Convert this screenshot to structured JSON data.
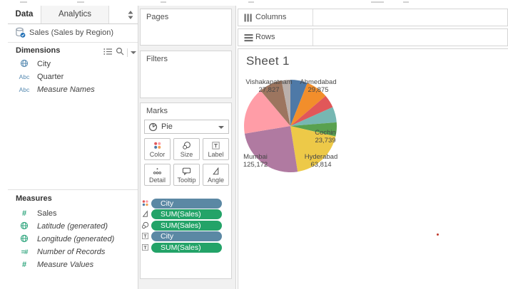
{
  "tabs": [
    {
      "label": "Data",
      "active": true
    },
    {
      "label": "Analytics",
      "active": false
    }
  ],
  "data_pane": {
    "datasource": "Sales (Sales by Region)",
    "dimensions": {
      "header": "Dimensions",
      "items": [
        {
          "label": "City",
          "icon": "globe",
          "italic": false
        },
        {
          "label": "Quarter",
          "icon": "abc",
          "italic": false
        },
        {
          "label": "Measure Names",
          "icon": "abc",
          "italic": true
        }
      ]
    },
    "measures": {
      "header": "Measures",
      "items": [
        {
          "label": "Sales",
          "icon": "hash",
          "italic": false
        },
        {
          "label": "Latitude (generated)",
          "icon": "globe",
          "italic": true
        },
        {
          "label": "Longitude (generated)",
          "icon": "globe",
          "italic": true
        },
        {
          "label": "Number of Records",
          "icon": "eq-hash",
          "italic": true
        },
        {
          "label": "Measure Values",
          "icon": "hash",
          "italic": true
        }
      ]
    }
  },
  "shelves": {
    "pages": "Pages",
    "filters": "Filters",
    "columns": "Columns",
    "rows": "Rows"
  },
  "marks": {
    "header": "Marks",
    "mark_type": "Pie",
    "buttons": [
      {
        "label": "Color",
        "icon": "color-dots"
      },
      {
        "label": "Size",
        "icon": "size-circles"
      },
      {
        "label": "Label",
        "icon": "text-t"
      },
      {
        "label": "Detail",
        "icon": "detail-dots"
      },
      {
        "label": "Tooltip",
        "icon": "tooltip-bubble"
      },
      {
        "label": "Angle",
        "icon": "angle-triangle"
      }
    ],
    "pills": [
      {
        "label": "City",
        "role": "dimension",
        "icon": "color-dots"
      },
      {
        "label": "SUM(Sales)",
        "role": "measure",
        "icon": "angle-triangle"
      },
      {
        "label": "SUM(Sales)",
        "role": "measure",
        "icon": "size-circles"
      },
      {
        "label": "City",
        "role": "dimension",
        "icon": "text-t"
      },
      {
        "label": "SUM(Sales)",
        "role": "measure",
        "icon": "text-t"
      }
    ]
  },
  "sheet": {
    "title": "Sheet 1"
  },
  "colors": {
    "pill_blue": "#5b88a4",
    "pill_green": "#23a368",
    "dimension_icon_blue": "#5488b0",
    "measure_icon_green": "#2aa37a",
    "panel_bg": "#f1f1f1",
    "border": "#d4d4d4"
  },
  "chart_data": {
    "type": "pie",
    "title": "Sheet 1",
    "legend": "none",
    "center": {
      "x": 72,
      "y": 72
    },
    "radius": 65,
    "slices": [
      {
        "city": "Ahmedabad",
        "value": 29875,
        "value_label": "29,875",
        "color": "#4e79a7",
        "start_deg": 0,
        "end_deg": 21.5
      },
      {
        "city": null,
        "value": null,
        "value_label": null,
        "color": "#f28e2b",
        "start_deg": 21.5,
        "end_deg": 49.5
      },
      {
        "city": null,
        "value": null,
        "value_label": null,
        "color": "#e15759",
        "start_deg": 49.5,
        "end_deg": 66
      },
      {
        "city": null,
        "value": null,
        "value_label": null,
        "color": "#76b7b2",
        "start_deg": 66,
        "end_deg": 85.5
      },
      {
        "city": "Cochin",
        "value": 23739,
        "value_label": "23,739",
        "color": "#59a14f",
        "start_deg": 85.5,
        "end_deg": 103
      },
      {
        "city": "Hyderabad",
        "value": 63814,
        "value_label": "63,814",
        "color": "#edc948",
        "start_deg": 103,
        "end_deg": 171
      },
      {
        "city": "Mumbai",
        "value": 125172,
        "value_label": "125,172",
        "color": "#b07aa1",
        "start_deg": 171,
        "end_deg": 260.5
      },
      {
        "city": null,
        "value": null,
        "value_label": null,
        "color": "#ff9da7",
        "start_deg": 260.5,
        "end_deg": 320
      },
      {
        "city": "Vishakapatnam",
        "value": 27827,
        "value_label": "27,827",
        "color": "#9c755f",
        "start_deg": 320,
        "end_deg": 349
      },
      {
        "city": null,
        "value": null,
        "value_label": null,
        "color": "#bab0ac",
        "start_deg": 349,
        "end_deg": 360
      }
    ]
  }
}
